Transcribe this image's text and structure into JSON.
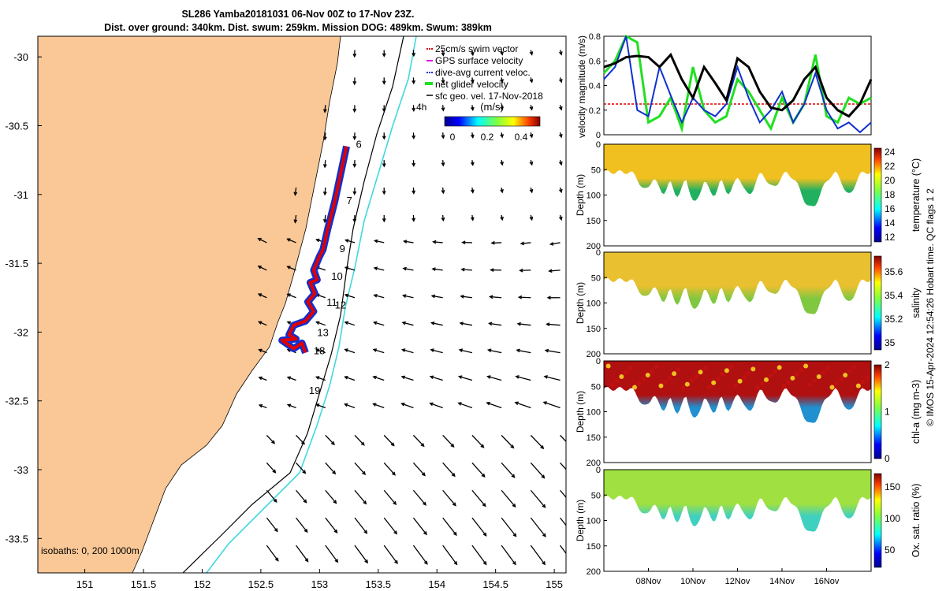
{
  "title": {
    "line1": "SL286 Yamba20181031 06-Nov 00Z to 17-Nov 23Z.",
    "line2": "Dist. over ground: 340km. Dist. swum: 259km. Mission DOG: 489km. Swum: 389km"
  },
  "colors": {
    "land": "#fac896",
    "glider_red": "#e00000",
    "glider_blue": "#1030d0",
    "isobath_cyan": "#40d8e0",
    "net_green": "#20e020"
  },
  "chart_data": [
    {
      "type": "scatter",
      "name": "map",
      "x_ticks": [
        151,
        151.5,
        152,
        152.5,
        153,
        153.5,
        154,
        154.5,
        155
      ],
      "x_tick_labels": [
        "151",
        "151.5",
        "152",
        "152.5",
        "153",
        "153.5",
        "154",
        "154.5",
        "155"
      ],
      "y_ticks": [
        -30,
        -30.5,
        -31,
        -31.5,
        -32,
        -32.5,
        -33,
        -33.5
      ],
      "y_tick_labels": [
        "-30",
        "-30.5",
        "-31",
        "-31.5",
        "-32",
        "-32.5",
        "-33",
        "-33.5"
      ],
      "xlim": [
        150.6,
        155.1
      ],
      "ylim": [
        -33.75,
        -29.85
      ],
      "legend": [
        {
          "label": "25cm/s swim vector",
          "color": "#e00000"
        },
        {
          "label": "GPS surface velocity",
          "color": "#e000e0"
        },
        {
          "label": "dive-avg current veloc.",
          "color": "#1030d0"
        },
        {
          "label": "net glider velocity",
          "color": "#20e020"
        },
        {
          "label": "sfc geo. vel. 17-Nov-2018",
          "color": "#000000"
        }
      ],
      "legend_extra": "4h",
      "colorbar": {
        "label": "(m/s)",
        "ticks": [
          "0",
          "0.2",
          "0.4"
        ],
        "range": [
          0,
          0.5
        ]
      },
      "isobaths_label": "isobaths: 0, 200 1000m",
      "track_day_labels": [
        {
          "text": "6",
          "lon": 153.31,
          "lat": -30.66
        },
        {
          "text": "7",
          "lon": 153.23,
          "lat": -31.07
        },
        {
          "text": "9",
          "lon": 153.17,
          "lat": -31.42
        },
        {
          "text": "10",
          "lon": 153.1,
          "lat": -31.62
        },
        {
          "text": "11",
          "lon": 153.06,
          "lat": -31.81
        },
        {
          "text": "12",
          "lon": 153.13,
          "lat": -31.83
        },
        {
          "text": "13",
          "lon": 152.98,
          "lat": -32.03
        },
        {
          "text": "18",
          "lon": 152.95,
          "lat": -32.16
        },
        {
          "text": "19",
          "lon": 152.91,
          "lat": -32.45
        }
      ],
      "track": [
        [
          153.23,
          -30.65
        ],
        [
          153.18,
          -30.85
        ],
        [
          153.13,
          -31.05
        ],
        [
          153.07,
          -31.25
        ],
        [
          153.03,
          -31.4
        ],
        [
          153.0,
          -31.45
        ],
        [
          152.95,
          -31.55
        ],
        [
          152.98,
          -31.62
        ],
        [
          152.92,
          -31.64
        ],
        [
          152.96,
          -31.72
        ],
        [
          152.9,
          -31.78
        ],
        [
          152.95,
          -31.85
        ],
        [
          152.88,
          -31.92
        ],
        [
          152.78,
          -31.95
        ],
        [
          152.74,
          -32.02
        ],
        [
          152.8,
          -32.05
        ],
        [
          152.68,
          -32.06
        ],
        [
          152.78,
          -32.12
        ],
        [
          152.85,
          -32.08
        ],
        [
          152.88,
          -32.15
        ]
      ]
    },
    {
      "type": "line",
      "name": "velocity",
      "ylabel": "velocity magnitude (m/s)",
      "y_ticks": [
        0,
        0.2,
        0.4,
        0.6,
        0.8
      ],
      "y_tick_labels": [
        "0",
        "0.2",
        "0.4",
        "0.6",
        "0.8"
      ],
      "ylim": [
        0,
        0.8
      ],
      "xlim": [
        6,
        18
      ],
      "series": [
        {
          "name": "sfc geo. vel.",
          "color": "#000000",
          "x": [
            6,
            6.5,
            7,
            7.5,
            8,
            8.5,
            9,
            9.5,
            10,
            10.5,
            11,
            11.5,
            12,
            12.5,
            13,
            13.5,
            14,
            14.5,
            15,
            15.5,
            16,
            16.5,
            17,
            17.5,
            18
          ],
          "y": [
            0.55,
            0.58,
            0.63,
            0.64,
            0.63,
            0.55,
            0.65,
            0.45,
            0.3,
            0.55,
            0.42,
            0.28,
            0.62,
            0.55,
            0.35,
            0.22,
            0.2,
            0.28,
            0.45,
            0.55,
            0.3,
            0.2,
            0.15,
            0.25,
            0.45
          ]
        },
        {
          "name": "dive-avg current veloc.",
          "color": "#1030d0",
          "x": [
            6,
            6.5,
            7,
            7.5,
            8,
            8.5,
            9,
            9.5,
            10,
            10.5,
            11,
            11.5,
            12,
            12.5,
            13,
            13.5,
            14,
            14.5,
            15,
            15.5,
            16,
            16.5,
            17,
            17.5,
            18
          ],
          "y": [
            0.45,
            0.55,
            0.82,
            0.2,
            0.15,
            0.55,
            0.32,
            0.1,
            0.3,
            0.2,
            0.15,
            0.25,
            0.55,
            0.3,
            0.1,
            0.2,
            0.35,
            0.1,
            0.25,
            0.5,
            0.2,
            0.05,
            0.1,
            0.02,
            0.1
          ]
        },
        {
          "name": "net glider velocity",
          "color": "#20e020",
          "x": [
            6,
            6.5,
            7,
            7.5,
            8,
            8.5,
            9,
            9.5,
            10,
            10.5,
            11,
            11.5,
            12,
            12.5,
            13,
            13.5,
            14,
            14.5,
            15,
            15.5,
            16,
            16.5,
            17,
            17.5,
            18
          ],
          "y": [
            0.5,
            0.6,
            0.8,
            0.75,
            0.1,
            0.15,
            0.3,
            0.05,
            0.55,
            0.2,
            0.1,
            0.15,
            0.45,
            0.35,
            0.2,
            0.05,
            0.3,
            0.1,
            0.25,
            0.65,
            0.15,
            0.1,
            0.3,
            0.25,
            0.3
          ]
        },
        {
          "name": "25cm/s swim vector",
          "color": "#e00000",
          "x": [
            6,
            18
          ],
          "y": [
            0.25,
            0.25
          ]
        }
      ]
    },
    {
      "type": "heatmap",
      "name": "temperature",
      "ylabel": "Depth (m)",
      "clabel": "temperature (°C)",
      "y_ticks": [
        "0",
        "50",
        "100",
        "150",
        "200"
      ],
      "cbar_ticks": [
        "24",
        "22",
        "20",
        "18",
        "16",
        "14",
        "12"
      ],
      "crange": [
        11.5,
        24.5
      ],
      "surface_color": "#f0c020",
      "deep_color": "#20b060"
    },
    {
      "type": "heatmap",
      "name": "salinity",
      "ylabel": "Depth (m)",
      "clabel": "salinity",
      "y_ticks": [
        "0",
        "50",
        "100",
        "150",
        "200"
      ],
      "cbar_ticks": [
        "35.6",
        "35.4",
        "35.2",
        "35"
      ],
      "crange": [
        34.9,
        35.7
      ],
      "surface_color": "#e8c030",
      "deep_color": "#80c840"
    },
    {
      "type": "heatmap",
      "name": "chl-a",
      "ylabel": "Depth (m)",
      "clabel": "chl-a (mg m-3)",
      "y_ticks": [
        "0",
        "50",
        "100",
        "150",
        "200"
      ],
      "cbar_ticks": [
        "2",
        "1",
        "0"
      ],
      "crange": [
        0,
        2
      ],
      "surface_color": "#b01010",
      "deep_color": "#2090d0"
    },
    {
      "type": "heatmap",
      "name": "oxygen",
      "ylabel": "Depth (m)",
      "clabel": "Ox. sat. ratio (%)",
      "y_ticks": [
        "0",
        "50",
        "100",
        "150",
        "200"
      ],
      "cbar_ticks": [
        "150",
        "100",
        "50"
      ],
      "crange": [
        20,
        175
      ],
      "surface_color": "#a0e040",
      "deep_color": "#40d0c0"
    }
  ],
  "time_axis": {
    "ticks": [
      8,
      10,
      12,
      14,
      16
    ],
    "labels": [
      "08Nov",
      "10Nov",
      "12Nov",
      "14Nov",
      "16Nov"
    ]
  },
  "side_note": "© IMOS 15-Apr-2024 12:54:26 Hobart time. QC flags 1  2"
}
